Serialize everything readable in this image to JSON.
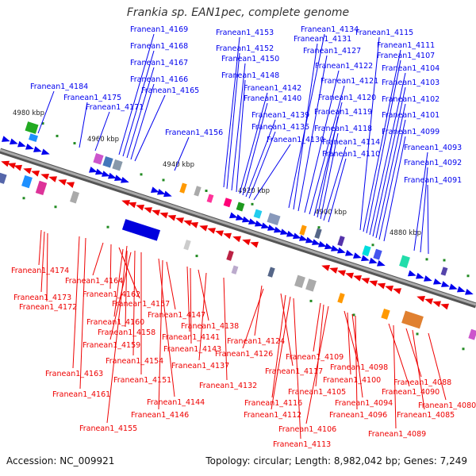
{
  "title": "Frankia sp. EAN1pec, complete genome",
  "accession": "Accession: NC_009921",
  "topology": "Topology: circular; Length: 8,982,042 bp; Genes: 7,249",
  "colors": {
    "forward": "#0000ee",
    "reverse": "#ee0000",
    "backbone": "#888888",
    "tick": "#228b22"
  },
  "ticks": [
    "4980 kbp",
    "4960 kbp",
    "4940 kbp",
    "4920 kbp",
    "4900 kbp",
    "4880 kbp"
  ],
  "forward_labels": [
    "Franean1_4184",
    "Franean1_4175",
    "Franean1_4171",
    "Franean1_4169",
    "Franean1_4168",
    "Franean1_4167",
    "Franean1_4166",
    "Franean1_4165",
    "Franean1_4156",
    "Franean1_4153",
    "Franean1_4152",
    "Franean1_4150",
    "Franean1_4148",
    "Franean1_4142",
    "Franean1_4140",
    "Franean1_4139",
    "Franean1_4135",
    "Franean1_4130",
    "Franean1_4134",
    "Franean1_4131",
    "Franean1_4127",
    "Franean1_4122",
    "Franean1_4121",
    "Franean1_4120",
    "Franean1_4119",
    "Franean1_4118",
    "Franean1_4114",
    "Franean1_4110",
    "Franean1_4115",
    "Franean1_4111",
    "Franean1_4107",
    "Franean1_4104",
    "Franean1_4103",
    "Franean1_4102",
    "Franean1_4101",
    "Franean1_4099",
    "Franean1_4093",
    "Franean1_4092",
    "Franean1_4091"
  ],
  "reverse_labels": [
    "Franean1_4174",
    "Franean1_4173",
    "Franean1_4172",
    "Franean1_4164",
    "Franean1_4162",
    "Franean1_4157",
    "Franean1_4160",
    "Franean1_4158",
    "Franean1_4159",
    "Franean1_4163",
    "Franean1_4161",
    "Franean1_4155",
    "Franean1_4154",
    "Franean1_4151",
    "Franean1_4144",
    "Franean1_4146",
    "Franean1_4147",
    "Franean1_4141",
    "Franean1_4143",
    "Franean1_4138",
    "Franean1_4137",
    "Franean1_4132",
    "Franean1_4124",
    "Franean1_4126",
    "Franean1_4117",
    "Franean1_4116",
    "Franean1_4112",
    "Franean1_4113",
    "Franean1_4109",
    "Franean1_4105",
    "Franean1_4106",
    "Franean1_4098",
    "Franean1_4100",
    "Franean1_4094",
    "Franean1_4096",
    "Franean1_4090",
    "Franean1_4089",
    "Franean1_4088",
    "Franean1_4085",
    "Franean1_4080"
  ]
}
